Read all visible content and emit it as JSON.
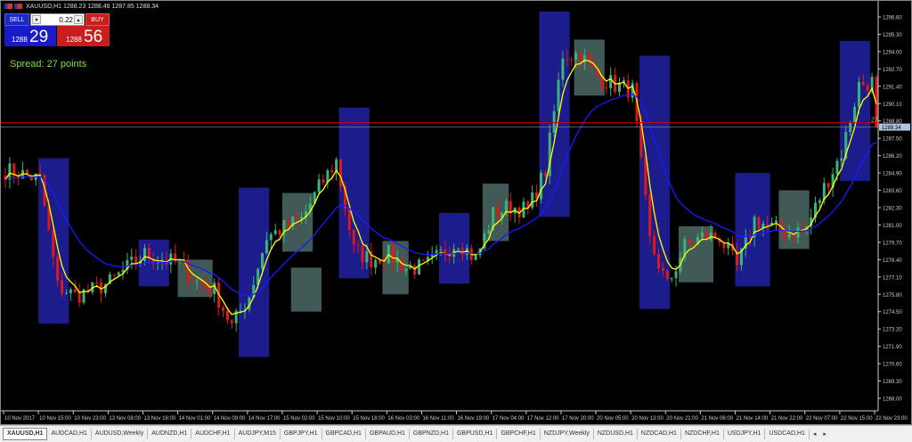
{
  "window": {
    "symbol_line": "XAUUSD,H1  1288.23  1288.46  1287.85  1288.34"
  },
  "trade_panel": {
    "sell_label": "SELL",
    "buy_label": "BUY",
    "lot_value": "0.22",
    "sell_price_small": "1288",
    "sell_price_big": "29",
    "buy_price_small": "1288",
    "buy_price_big": "56",
    "spread_text": "Spread: 27 points",
    "sell_color": "#1a1acb",
    "buy_color": "#c81e1e"
  },
  "tabs": [
    {
      "label": "XAUUSD,H1",
      "active": true
    },
    {
      "label": "AUDCAD,H1"
    },
    {
      "label": "AUDUSD,Weekly"
    },
    {
      "label": "AUDNZD,H1"
    },
    {
      "label": "AUDCHF,H1"
    },
    {
      "label": "AUDJPY,M15"
    },
    {
      "label": "GBPJPY,H1"
    },
    {
      "label": "GBPCAD,H1"
    },
    {
      "label": "GBPAUD,H1"
    },
    {
      "label": "GBPNZD,H1"
    },
    {
      "label": "GBPUSD,H1"
    },
    {
      "label": "GBPCHF,H1"
    },
    {
      "label": "NZDJPY,Weekly"
    },
    {
      "label": "NZDUSD,H1"
    },
    {
      "label": "NZDCAD,H1"
    },
    {
      "label": "NZDCHF,H1"
    },
    {
      "label": "USDJPY,H1"
    },
    {
      "label": "USDCAD,H1"
    }
  ],
  "tab_nav": {
    "prev": "◂",
    "next": "▸"
  },
  "chart_data": {
    "type": "candlestick",
    "symbol": "XAUUSD",
    "timeframe": "H1",
    "ylim": [
      1267.5,
      1297.2
    ],
    "y_ticks": [
      "1296.60",
      "1295.30",
      "1294.00",
      "1292.70",
      "1291.40",
      "1290.10",
      "1288.80",
      "1287.50",
      "1286.20",
      "1284.90",
      "1283.60",
      "1282.30",
      "1281.00",
      "1279.70",
      "1278.40",
      "1277.10",
      "1275.80",
      "1274.50",
      "1273.20",
      "1271.90",
      "1270.60",
      "1269.30",
      "1268.00"
    ],
    "x_ticks": [
      "10 Nov 2017",
      "10 Nov 15:00",
      "10 Nov 23:00",
      "13 Nov 08:00",
      "13 Nov 16:00",
      "14 Nov 01:00",
      "14 Nov 09:00",
      "14 Nov 17:00",
      "15 Nov 02:00",
      "15 Nov 10:00",
      "15 Nov 18:00",
      "16 Nov 03:00",
      "16 Nov 11:00",
      "16 Nov 19:00",
      "17 Nov 04:00",
      "17 Nov 12:00",
      "17 Nov 20:00",
      "20 Nov 05:00",
      "20 Nov 13:00",
      "20 Nov 21:00",
      "21 Nov 06:00",
      "21 Nov 14:00",
      "21 Nov 22:00",
      "22 Nov 07:00",
      "22 Nov 15:00",
      "22 Nov 23:00"
    ],
    "approx_close_every_4_bars": [
      1285.1,
      1284.8,
      1284.4,
      1276.4,
      1275.7,
      1276.1,
      1276.7,
      1277.8,
      1278.8,
      1278.4,
      1278.1,
      1276.7,
      1276.1,
      1273.4,
      1275.7,
      1280.1,
      1280.8,
      1281.4,
      1283.8,
      1285.8,
      1279.1,
      1278.4,
      1278.8,
      1277.8,
      1277.8,
      1278.8,
      1279.8,
      1278.4,
      1281.8,
      1282.4,
      1282.1,
      1285.1,
      1293.8,
      1293.8,
      1292.1,
      1291.5,
      1291.1,
      1279.8,
      1276.4,
      1279.4,
      1280.1,
      1280.1,
      1277.8,
      1281.4,
      1280.8,
      1280.4,
      1280.8,
      1283.8,
      1286.4,
      1291.5,
      1291.8
    ],
    "last_price": "1288.34",
    "ask_line_label": "27",
    "moving_averages": [
      {
        "color": "#ffff00",
        "kind": "fast"
      },
      {
        "color": "#1a1aff",
        "kind": "slow"
      }
    ],
    "bull_color": "#3cb37a",
    "bear_color": "#e01818",
    "zones": [
      {
        "kind": "blue",
        "from": "10 Nov 15:00",
        "to": "10 Nov 21:00",
        "high": 1286.0,
        "low": 1273.6
      },
      {
        "kind": "grey",
        "from": "13 Nov 01:00",
        "to": "13 Nov 07:00",
        "high": 1277.8,
        "low": 1274.5
      },
      {
        "kind": "blue",
        "from": "13 Nov 15:00",
        "to": "13 Nov 21:00",
        "high": 1279.9,
        "low": 1276.4
      },
      {
        "kind": "grey",
        "from": "14 Nov 01:00",
        "to": "14 Nov 08:00",
        "high": 1278.4,
        "low": 1275.6
      },
      {
        "kind": "blue",
        "from": "14 Nov 15:00",
        "to": "14 Nov 21:00",
        "high": 1283.8,
        "low": 1271.1
      },
      {
        "kind": "grey",
        "from": "15 Nov 01:00",
        "to": "15 Nov 08:00",
        "high": 1283.4,
        "low": 1279.0
      },
      {
        "kind": "blue",
        "from": "15 Nov 15:00",
        "to": "15 Nov 21:00",
        "high": 1289.8,
        "low": 1277.0
      },
      {
        "kind": "grey",
        "from": "16 Nov 01:00",
        "to": "16 Nov 07:00",
        "high": 1279.8,
        "low": 1275.8
      },
      {
        "kind": "blue",
        "from": "16 Nov 15:00",
        "to": "16 Nov 21:00",
        "high": 1281.9,
        "low": 1276.6
      },
      {
        "kind": "grey",
        "from": "17 Nov 01:00",
        "to": "17 Nov 07:00",
        "high": 1284.1,
        "low": 1279.8
      },
      {
        "kind": "blue",
        "from": "17 Nov 15:00",
        "to": "17 Nov 21:00",
        "high": 1297.0,
        "low": 1281.6
      },
      {
        "kind": "grey",
        "from": "17 Nov 23:00",
        "to": "20 Nov 06:00",
        "high": 1294.9,
        "low": 1290.7
      },
      {
        "kind": "blue",
        "from": "20 Nov 15:00",
        "to": "20 Nov 21:00",
        "high": 1293.7,
        "low": 1274.7
      },
      {
        "kind": "grey",
        "from": "21 Nov 00:00",
        "to": "21 Nov 08:00",
        "high": 1280.9,
        "low": 1276.7
      },
      {
        "kind": "blue",
        "from": "21 Nov 14:00",
        "to": "21 Nov 21:00",
        "high": 1284.9,
        "low": 1276.4
      },
      {
        "kind": "grey",
        "from": "22 Nov 00:00",
        "to": "22 Nov 06:00",
        "high": 1283.6,
        "low": 1279.2
      },
      {
        "kind": "blue",
        "from": "22 Nov 15:00",
        "to": "22 Nov 21:00",
        "high": 1294.8,
        "low": 1284.3
      }
    ],
    "zone_colors": {
      "blue": "#1c1c8c",
      "grey": "#4a6a66"
    }
  }
}
